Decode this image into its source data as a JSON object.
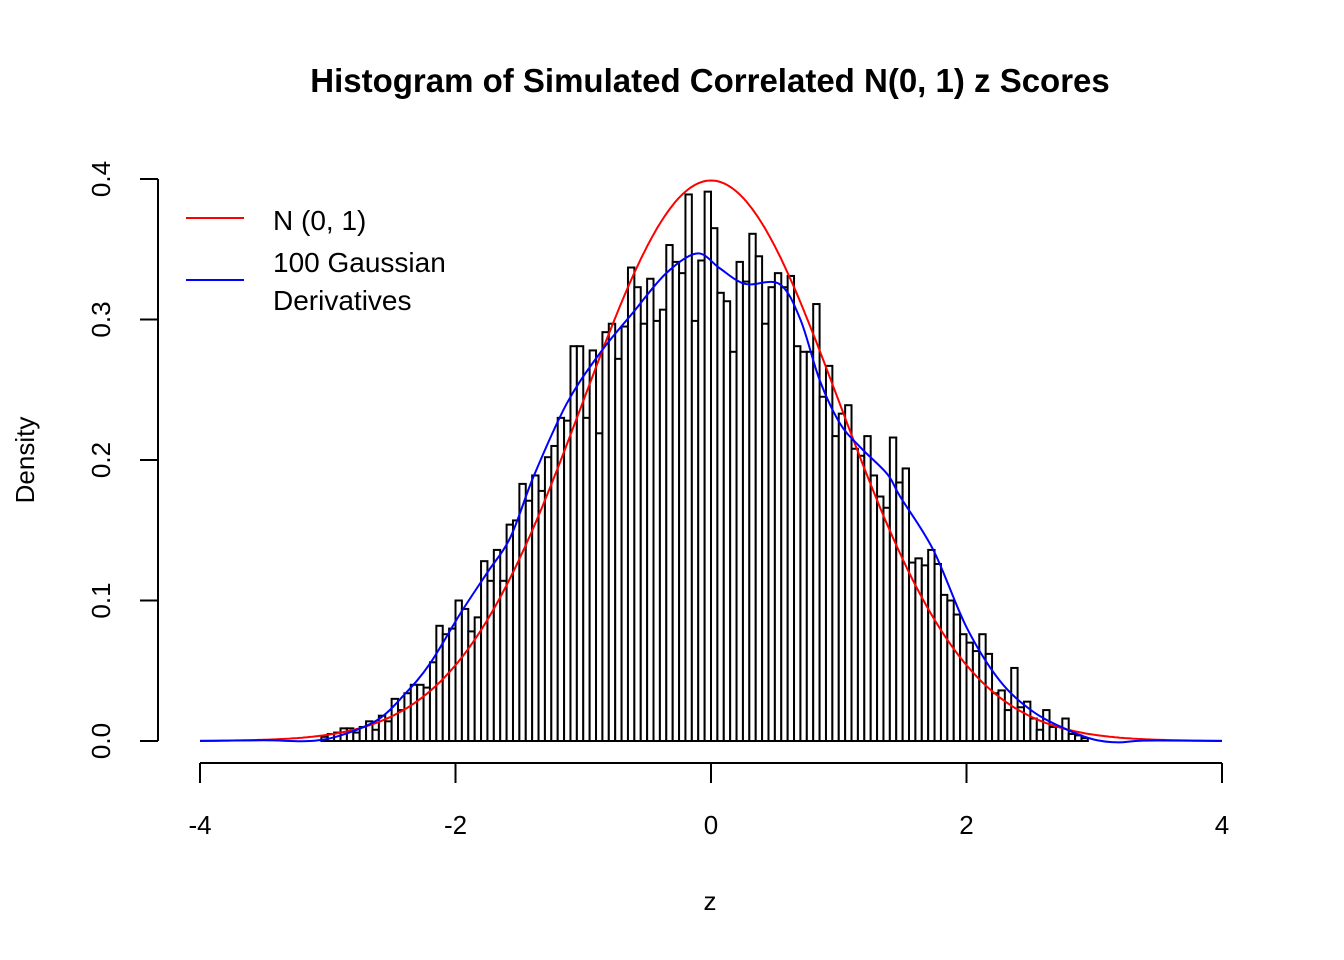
{
  "chart_data": {
    "type": "bar",
    "title": "Histogram of Simulated Correlated N(0, 1) z Scores",
    "xlabel": "z",
    "ylabel": "Density",
    "xlim": [
      -4,
      4
    ],
    "ylim": [
      0,
      0.4
    ],
    "x_ticks": [
      "-4",
      "-2",
      "0",
      "2",
      "4"
    ],
    "y_ticks": [
      "0.0",
      "0.1",
      "0.2",
      "0.3",
      "0.4"
    ],
    "grid": false,
    "legend_position": "top-left",
    "histogram": {
      "bin_start": -3.05,
      "bin_width": 0.05,
      "densities": [
        0.003,
        0.005,
        0.006,
        0.009,
        0.009,
        0.006,
        0.01,
        0.014,
        0.008,
        0.018,
        0.014,
        0.03,
        0.022,
        0.034,
        0.04,
        0.04,
        0.038,
        0.056,
        0.082,
        0.076,
        0.08,
        0.1,
        0.094,
        0.078,
        0.088,
        0.128,
        0.114,
        0.136,
        0.114,
        0.154,
        0.157,
        0.183,
        0.171,
        0.189,
        0.178,
        0.202,
        0.21,
        0.23,
        0.228,
        0.281,
        0.281,
        0.23,
        0.278,
        0.219,
        0.291,
        0.297,
        0.272,
        0.295,
        0.337,
        0.323,
        0.297,
        0.329,
        0.299,
        0.307,
        0.353,
        0.341,
        0.333,
        0.389,
        0.299,
        0.342,
        0.391,
        0.365,
        0.319,
        0.313,
        0.277,
        0.341,
        0.327,
        0.361,
        0.345,
        0.297,
        0.323,
        0.333,
        0.323,
        0.331,
        0.281,
        0.277,
        0.277,
        0.311,
        0.245,
        0.267,
        0.217,
        0.233,
        0.239,
        0.208,
        0.203,
        0.217,
        0.189,
        0.174,
        0.166,
        0.216,
        0.184,
        0.194,
        0.127,
        0.13,
        0.125,
        0.136,
        0.126,
        0.104,
        0.1,
        0.09,
        0.076,
        0.07,
        0.064,
        0.076,
        0.062,
        0.034,
        0.036,
        0.022,
        0.052,
        0.024,
        0.028,
        0.016,
        0.008,
        0.022,
        0.01,
        0.01,
        0.016,
        0.005,
        0.004,
        0.002
      ]
    },
    "series": [
      {
        "name": "N (0, 1)",
        "color": "#ff0000",
        "type": "line",
        "function": "standard normal density"
      },
      {
        "name": "100 Gaussian Derivatives",
        "color": "#0000ff",
        "type": "line",
        "x": [
          -4,
          -3.5,
          -3.14,
          -2.9,
          -2.61,
          -2.4,
          -2.2,
          -1.96,
          -1.75,
          -1.57,
          -1.39,
          -1.13,
          -0.87,
          -0.61,
          -0.35,
          -0.11,
          0.06,
          0.2,
          0.3,
          0.54,
          0.7,
          0.85,
          1.01,
          1.17,
          1.38,
          1.48,
          1.74,
          2.0,
          2.26,
          2.52,
          2.79,
          3.0,
          3.19,
          3.4,
          4
        ],
        "y": [
          0,
          0.0005,
          0.0,
          0.004,
          0.015,
          0.033,
          0.055,
          0.091,
          0.12,
          0.145,
          0.188,
          0.24,
          0.276,
          0.305,
          0.333,
          0.347,
          0.337,
          0.328,
          0.325,
          0.325,
          0.3,
          0.257,
          0.226,
          0.209,
          0.19,
          0.174,
          0.136,
          0.081,
          0.043,
          0.021,
          0.008,
          0.001,
          -0.001,
          0.0003,
          0
        ]
      }
    ],
    "legend": {
      "line1": "N (0, 1)",
      "line2a": "100 Gaussian",
      "line2b": "Derivatives"
    }
  }
}
